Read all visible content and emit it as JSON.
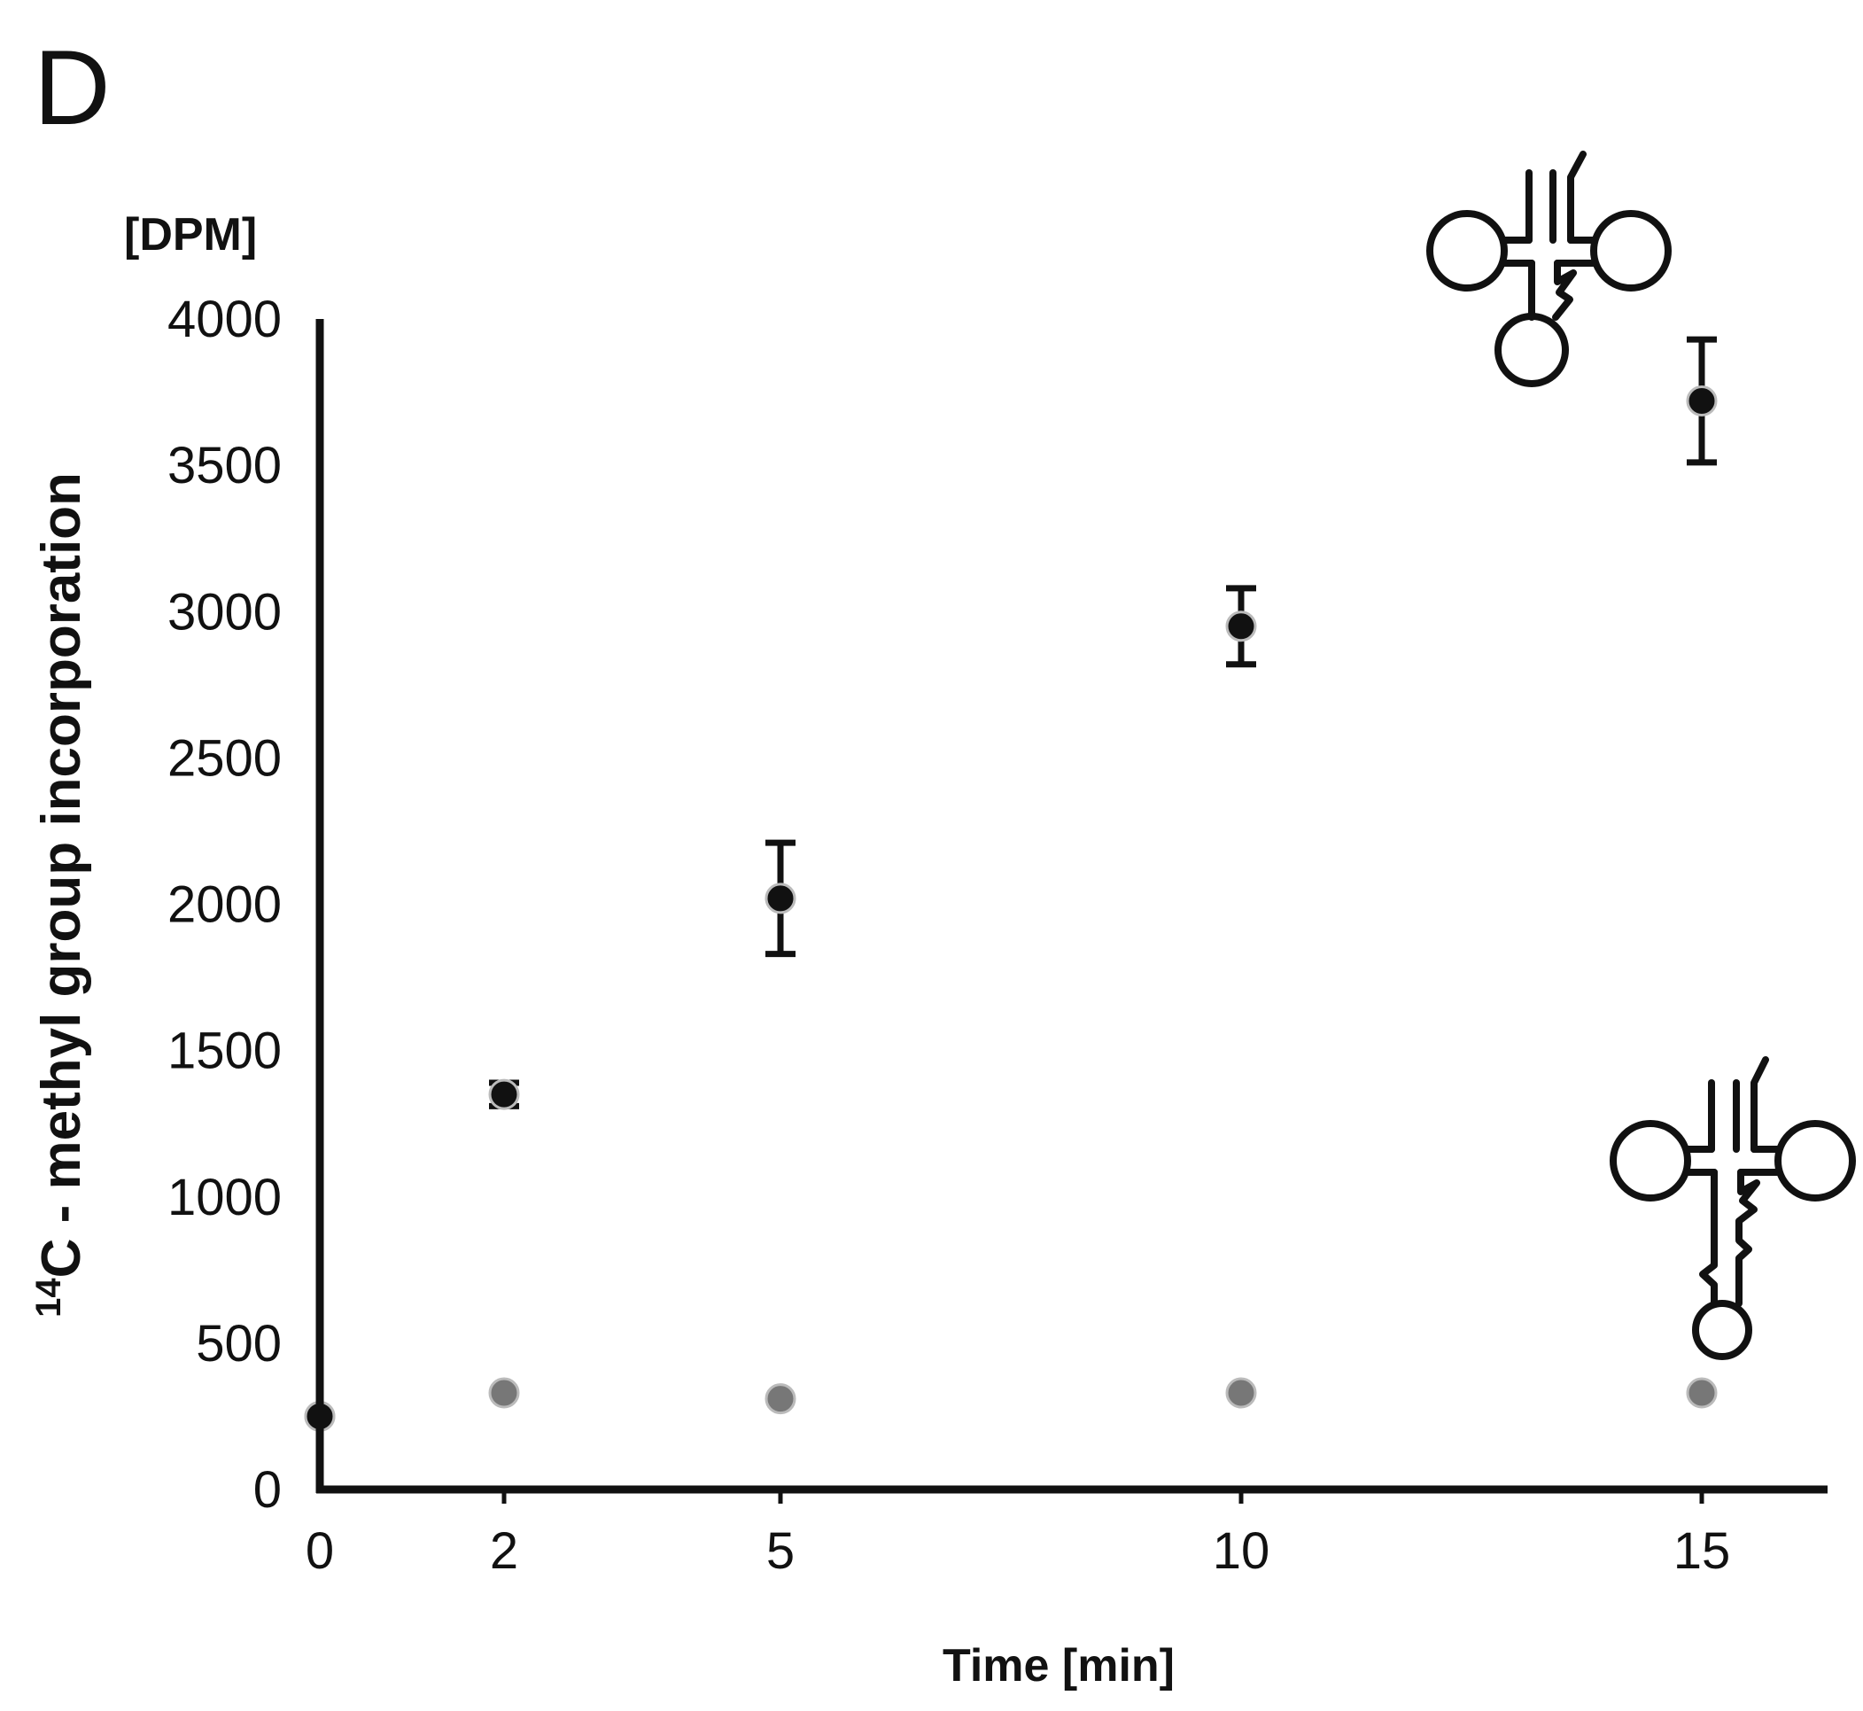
{
  "panel_label": "D",
  "chart_data": {
    "type": "scatter",
    "title": "",
    "unit_label": "[DPM]",
    "ylabel": {
      "superscript": "14",
      "text": "C - methyl group incorporation"
    },
    "xlabel": "Time [min]",
    "x_ticks": [
      0,
      2,
      5,
      10,
      15
    ],
    "y_ticks": [
      0,
      500,
      1000,
      1500,
      2000,
      2500,
      3000,
      3500,
      4000
    ],
    "xlim": [
      0,
      16
    ],
    "ylim": [
      0,
      4000
    ],
    "grid": false,
    "legend": "none",
    "series": [
      {
        "marker_color": "#111111",
        "icon": "trna-cloverleaf-icon",
        "points": [
          {
            "x": 0,
            "y": 250,
            "err": 0
          },
          {
            "x": 2,
            "y": 1350,
            "err": 40
          },
          {
            "x": 5,
            "y": 2020,
            "err": 190
          },
          {
            "x": 10,
            "y": 2950,
            "err": 130
          },
          {
            "x": 15,
            "y": 3720,
            "err": 210
          }
        ]
      },
      {
        "marker_color": "#777777",
        "icon": "trna-extended-stem-icon",
        "points": [
          {
            "x": 0,
            "y": 250,
            "err": 0
          },
          {
            "x": 2,
            "y": 330,
            "err": 0
          },
          {
            "x": 5,
            "y": 310,
            "err": 0
          },
          {
            "x": 10,
            "y": 330,
            "err": 0
          },
          {
            "x": 15,
            "y": 330,
            "err": 0
          }
        ]
      }
    ]
  }
}
